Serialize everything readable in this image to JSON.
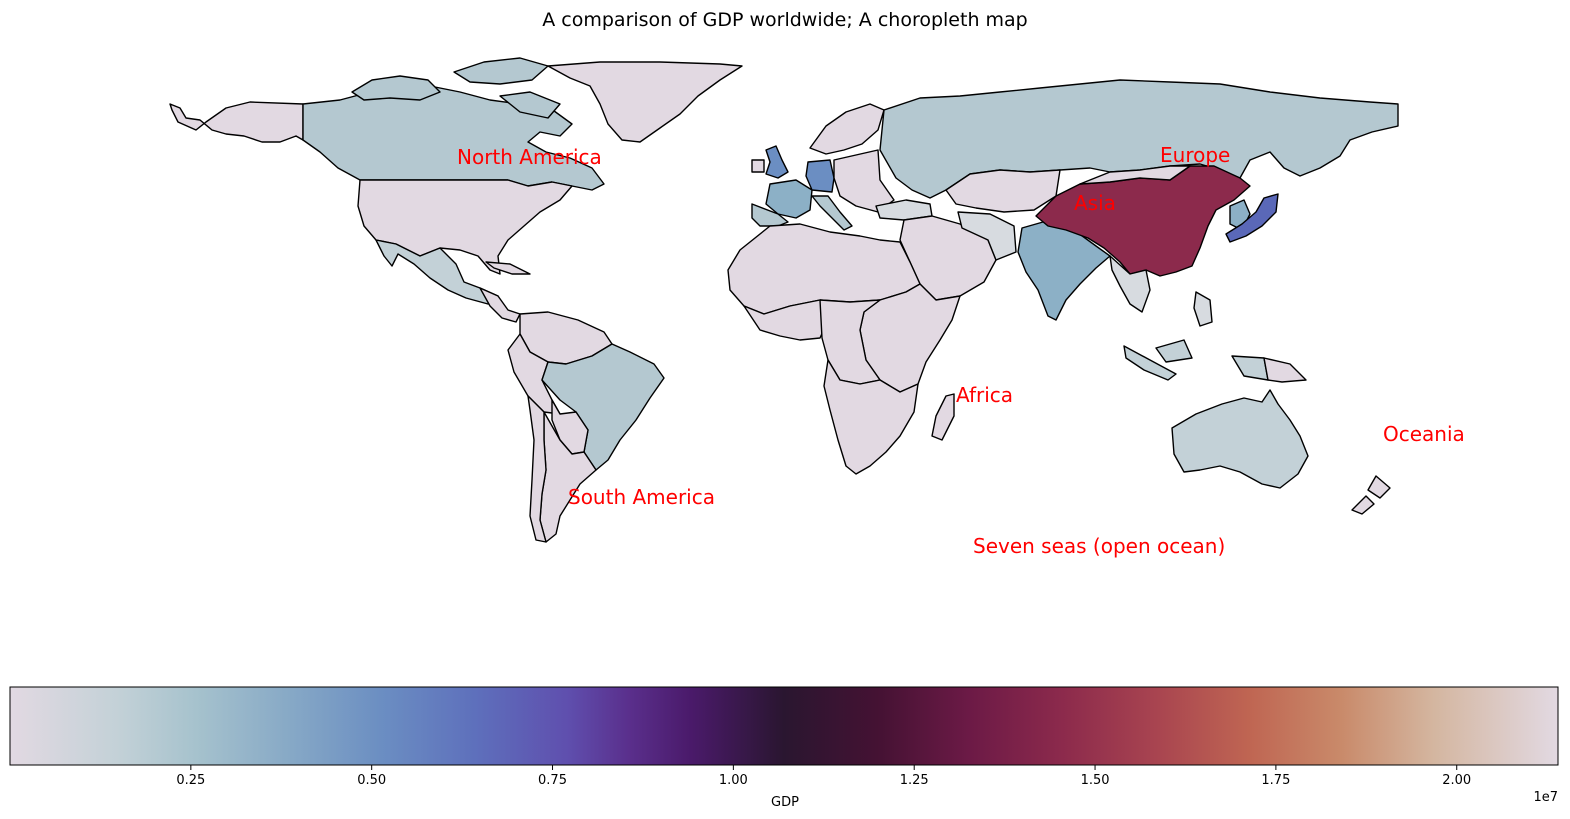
{
  "title": "A comparison of GDP  worldwide; A choropleth map",
  "continent_labels": {
    "north_america": "North America",
    "south_america": "South America",
    "europe": "Europe",
    "asia": "Asia",
    "africa": "Africa",
    "oceania": "Oceania",
    "seven_seas": "Seven seas (open ocean)"
  },
  "colorbar": {
    "label": "GDP",
    "exponent": "1e7",
    "ticks": [
      "0.25",
      "0.50",
      "0.75",
      "1.00",
      "1.25",
      "1.50",
      "1.75",
      "2.00"
    ],
    "tick_values": [
      0.25,
      0.5,
      0.75,
      1.0,
      1.25,
      1.5,
      1.75,
      2.0
    ],
    "range": [
      0.0,
      2.14
    ],
    "colormap": "twilight",
    "orientation": "horizontal",
    "position": "bottom"
  },
  "colors": {
    "low": "#e2d9e2",
    "teal_low": "#b4c8d0",
    "steel": "#8cb0c6",
    "blue": "#6b8ec2",
    "indigo": "#5a68b8",
    "mid": "#2c1a30",
    "crimson": "#8c2a4c",
    "annotation": "#ff0000"
  }
}
